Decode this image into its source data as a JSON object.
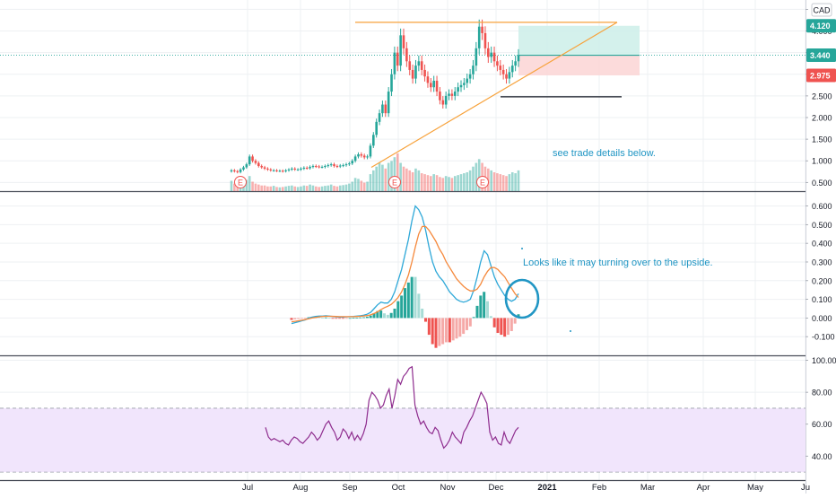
{
  "currency": "CAD",
  "colors": {
    "up": "#26a69a",
    "down": "#ef5350",
    "trend": "#f7a23b",
    "macd": "#2ea8d8",
    "signal": "#f5893c",
    "rsi": "#8e2c8e",
    "rsi_band": "#f1e5fc",
    "annotation": "#2196c4",
    "target_zone": "#cdeee9",
    "stop_zone": "#fbd5d5",
    "grid": "#eef0f3"
  },
  "price_badges": [
    {
      "label": "4.120",
      "value": 4.12,
      "color": "#26a69a"
    },
    {
      "label": "3.440",
      "value": 3.44,
      "color": "#26a69a"
    },
    {
      "label": "2.975",
      "value": 2.975,
      "color": "#ef5350"
    }
  ],
  "annotations": {
    "trade_note": "see trade details below.",
    "macd_note": "Looks like it may turning over to the upside."
  },
  "earnings_markers": [
    {
      "label": "E",
      "month": "Jul"
    },
    {
      "label": "E",
      "month": "Oct"
    },
    {
      "label": "E",
      "month": "Dec"
    }
  ],
  "chart_data": [
    {
      "type": "candlestick",
      "pane": "price",
      "x_ticks": [
        "Jul",
        "Aug",
        "Sep",
        "Oct",
        "Nov",
        "Dec",
        "2021",
        "Feb",
        "Mar",
        "Apr",
        "May",
        "Ju"
      ],
      "y_ticks": [
        "0.500",
        "1.000",
        "1.500",
        "2.000",
        "2.500",
        "3.000",
        "3.500",
        "4.000",
        "4.500"
      ],
      "ylim": [
        0.3,
        4.55
      ],
      "close": [
        0.78,
        0.76,
        0.74,
        0.8,
        0.85,
        0.92,
        1.1,
        1.0,
        0.95,
        0.88,
        0.85,
        0.82,
        0.8,
        0.78,
        0.78,
        0.77,
        0.77,
        0.76,
        0.78,
        0.8,
        0.82,
        0.8,
        0.8,
        0.82,
        0.84,
        0.83,
        0.86,
        0.88,
        0.87,
        0.86,
        0.86,
        0.88,
        0.9,
        0.92,
        0.88,
        0.87,
        0.89,
        0.9,
        0.92,
        0.94,
        1.0,
        1.1,
        1.15,
        1.12,
        1.08,
        1.1,
        1.35,
        1.6,
        1.9,
        2.1,
        2.3,
        2.1,
        2.6,
        3.0,
        3.5,
        3.2,
        3.9,
        3.6,
        3.3,
        3.1,
        2.9,
        3.2,
        3.3,
        3.1,
        2.95,
        2.8,
        2.7,
        2.85,
        2.6,
        2.4,
        2.3,
        2.5,
        2.55,
        2.5,
        2.6,
        2.7,
        2.75,
        2.8,
        2.9,
        3.0,
        3.2,
        3.6,
        4.1,
        3.95,
        3.6,
        3.4,
        3.5,
        3.3,
        3.2,
        3.1,
        3.0,
        2.9,
        3.05,
        3.2,
        3.3,
        3.44
      ],
      "volume": [
        55,
        40,
        35,
        30,
        45,
        60,
        80,
        50,
        40,
        35,
        30,
        30,
        25,
        25,
        28,
        22,
        20,
        22,
        25,
        28,
        30,
        25,
        22,
        25,
        30,
        28,
        35,
        30,
        25,
        22,
        25,
        28,
        30,
        35,
        28,
        25,
        30,
        32,
        35,
        40,
        50,
        70,
        65,
        55,
        45,
        50,
        90,
        110,
        130,
        150,
        140,
        120,
        150,
        160,
        180,
        200,
        150,
        130,
        120,
        110,
        100,
        120,
        110,
        95,
        90,
        85,
        80,
        90,
        85,
        75,
        70,
        80,
        75,
        70,
        80,
        85,
        90,
        95,
        100,
        110,
        130,
        150,
        170,
        150,
        130,
        120,
        110,
        100,
        95,
        90,
        85,
        80,
        90,
        100,
        95,
        110
      ],
      "trade_setup": {
        "target": 4.12,
        "entry": 3.44,
        "stop": 2.975,
        "resistance": 4.2,
        "support": 2.48
      }
    },
    {
      "type": "line",
      "pane": "macd",
      "y_ticks": [
        "-0.100",
        "0.000",
        "0.100",
        "0.200",
        "0.300",
        "0.400",
        "0.500",
        "0.600"
      ],
      "ylim": [
        -0.2,
        0.67
      ],
      "series": [
        {
          "values": [
            -0.03,
            -0.025,
            -0.02,
            -0.015,
            -0.01,
            0,
            0.005,
            0.008,
            0.01,
            0.01,
            0.012,
            0.01,
            0.008,
            0.006,
            0.005,
            0.005,
            0.006,
            0.007,
            0.008,
            0.01,
            0.012,
            0.015,
            0.02,
            0.03,
            0.05,
            0.07,
            0.085,
            0.08,
            0.08,
            0.1,
            0.14,
            0.2,
            0.26,
            0.34,
            0.42,
            0.52,
            0.6,
            0.58,
            0.54,
            0.47,
            0.38,
            0.3,
            0.25,
            0.22,
            0.2,
            0.17,
            0.14,
            0.12,
            0.1,
            0.09,
            0.085,
            0.09,
            0.1,
            0.15,
            0.22,
            0.3,
            0.36,
            0.34,
            0.28,
            0.22,
            0.18,
            0.15,
            0.12,
            0.1,
            0.09,
            0.1,
            0.13
          ]
        },
        {
          "values": [
            -0.02,
            -0.018,
            -0.015,
            -0.012,
            -0.008,
            -0.004,
            0,
            0.003,
            0.006,
            0.008,
            0.009,
            0.009,
            0.009,
            0.008,
            0.007,
            0.007,
            0.007,
            0.007,
            0.007,
            0.008,
            0.009,
            0.011,
            0.013,
            0.017,
            0.024,
            0.033,
            0.045,
            0.055,
            0.063,
            0.073,
            0.09,
            0.11,
            0.14,
            0.18,
            0.23,
            0.3,
            0.38,
            0.45,
            0.49,
            0.49,
            0.47,
            0.44,
            0.41,
            0.37,
            0.34,
            0.3,
            0.27,
            0.24,
            0.21,
            0.19,
            0.17,
            0.155,
            0.145,
            0.145,
            0.155,
            0.18,
            0.22,
            0.25,
            0.27,
            0.27,
            0.26,
            0.24,
            0.22,
            0.19,
            0.16,
            0.13,
            0.11
          ]
        }
      ]
    },
    {
      "type": "line",
      "pane": "rsi",
      "y_ticks": [
        "40.00",
        "60.00",
        "80.00",
        "100.00"
      ],
      "ylim": [
        25,
        102
      ],
      "bands": [
        30,
        70
      ],
      "values": [
        58,
        52,
        50,
        51,
        50,
        49,
        50,
        48,
        47,
        50,
        52,
        51,
        49,
        48,
        50,
        52,
        55,
        53,
        50,
        52,
        56,
        60,
        62,
        58,
        55,
        50,
        52,
        57,
        55,
        51,
        55,
        50,
        53,
        50,
        54,
        60,
        75,
        80,
        78,
        75,
        70,
        72,
        78,
        82,
        70,
        78,
        88,
        85,
        90,
        92,
        95,
        96,
        72,
        65,
        60,
        62,
        58,
        55,
        54,
        58,
        56,
        50,
        45,
        47,
        50,
        55,
        52,
        50,
        48,
        55,
        58,
        62,
        65,
        70,
        75,
        80,
        77,
        73,
        55,
        50,
        52,
        48,
        47,
        55,
        50,
        48,
        52,
        56,
        58
      ]
    }
  ],
  "x_axis": {
    "labels": [
      "Jul",
      "Aug",
      "Sep",
      "Oct",
      "Nov",
      "Dec",
      "2021",
      "Feb",
      "Mar",
      "Apr",
      "May",
      "Ju"
    ]
  }
}
